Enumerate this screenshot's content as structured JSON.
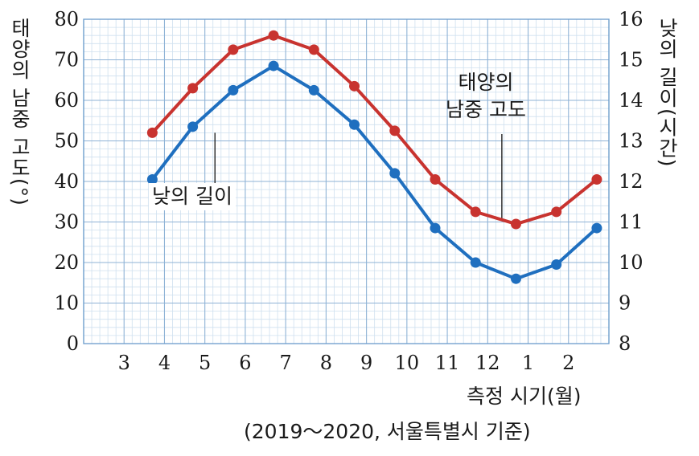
{
  "chart_data": {
    "type": "line",
    "x_ticks": [
      "3",
      "4",
      "5",
      "6",
      "7",
      "8",
      "9",
      "10",
      "11",
      "12",
      "1",
      "2"
    ],
    "xlabel": "측정 시기(월)",
    "caption": "(2019～2020, 서울특별시 기준)",
    "ylabel_left": "태양의 남중 고도(°)",
    "ylabel_right": "낮의 길이(시간)",
    "ylim_left": [
      0,
      80
    ],
    "ylim_right": [
      8,
      16
    ],
    "yticks_left": [
      "0",
      "10",
      "20",
      "30",
      "40",
      "50",
      "60",
      "70",
      "80"
    ],
    "yticks_right": [
      "8",
      "9",
      "10",
      "11",
      "12",
      "13",
      "14",
      "15",
      "16"
    ],
    "x_month_positions": [
      3.7,
      4.7,
      5.7,
      6.7,
      7.7,
      8.7,
      9.7,
      10.7,
      11.7,
      12.7,
      13.7,
      14.7
    ],
    "series": [
      {
        "name": "태양의 남중 고도",
        "axis": "left",
        "color": "#c8332f",
        "values": [
          52,
          63,
          72.5,
          76,
          72.5,
          63.5,
          52.5,
          40.5,
          32.5,
          29.5,
          32.5,
          40.5
        ]
      },
      {
        "name": "낮의 길이",
        "axis": "right",
        "color": "#1f6fbf",
        "values": [
          12.05,
          13.35,
          14.25,
          14.85,
          14.25,
          13.4,
          12.2,
          10.85,
          10.0,
          9.6,
          9.95,
          10.85
        ]
      }
    ],
    "annotations": [
      {
        "series": "태양의 남중 고도",
        "lines": [
          "태양의",
          "남중 고도"
        ]
      },
      {
        "series": "낮의 길이",
        "lines": [
          "낮의 길이"
        ]
      }
    ],
    "grid": true
  }
}
